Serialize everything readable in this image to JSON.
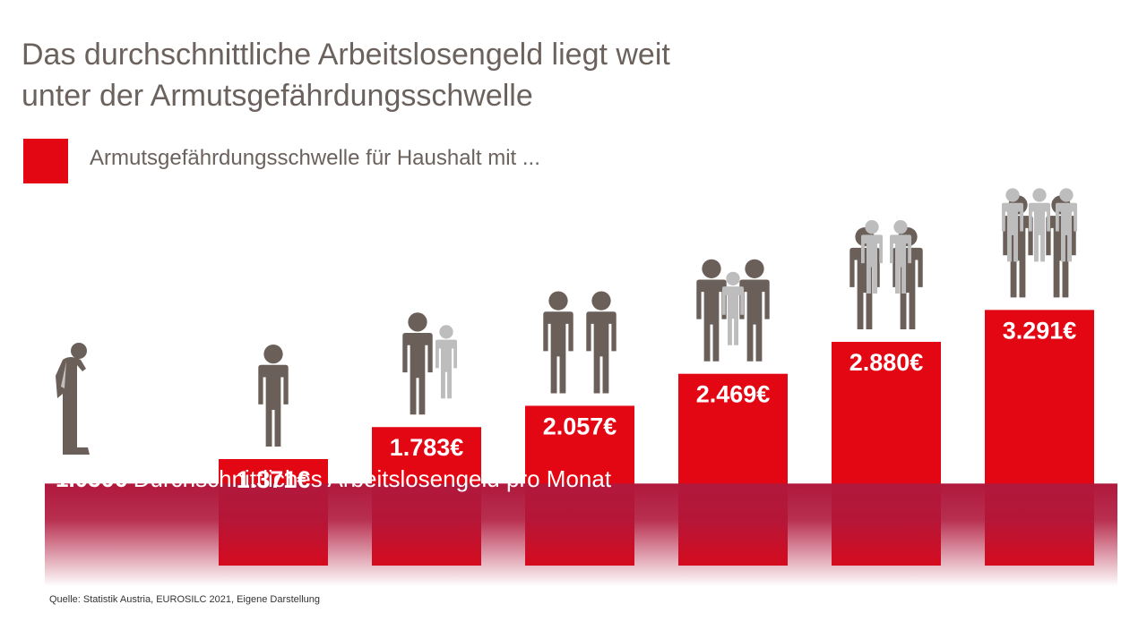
{
  "title_line1": "Das durchschnittliche Arbeitslosengeld liegt weit",
  "title_line2": "unter der Armutsgefährdungsschwelle",
  "legend": {
    "label": "Armutsgefährdungsschwelle für Haushalt mit ...",
    "color": "#e30613"
  },
  "band": {
    "value_label": "1.056€",
    "text": "Durchschnittliches Arbeitslosengeld pro Monat",
    "color": "#b0183c"
  },
  "source": "Quelle: Statistik Austria, EUROSILC 2021, Eigene Darstellung",
  "icon_colors": {
    "adult": "#6b5f5a",
    "child": "#bdbdbd"
  },
  "chart_data": {
    "type": "bar",
    "title": "Das durchschnittliche Arbeitslosengeld liegt weit unter der Armutsgefährdungsschwelle",
    "categories": [
      "",
      "",
      "",
      "",
      "",
      ""
    ],
    "values": [
      1371,
      1783,
      2057,
      2469,
      2880,
      3291
    ],
    "labels": [
      "1.371€",
      "1.783€",
      "2.057€",
      "2.469€",
      "2.880€",
      "3.291€"
    ],
    "household": [
      {
        "adults": 1,
        "children": 0
      },
      {
        "adults": 1,
        "children": 1
      },
      {
        "adults": 2,
        "children": 0
      },
      {
        "adults": 2,
        "children": 1
      },
      {
        "adults": 2,
        "children": 2
      },
      {
        "adults": 2,
        "children": 3
      }
    ],
    "reference_line": {
      "value": 1056,
      "label": "1.056€ Durchschnittliches Arbeitslosengeld pro Monat"
    },
    "legend": "Armutsgefährdungsschwelle für Haushalt mit ...",
    "bar_color": "#e30613",
    "grid": false
  }
}
